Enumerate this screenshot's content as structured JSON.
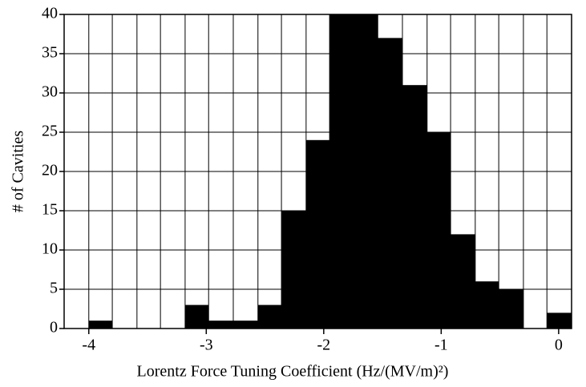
{
  "chart_data": {
    "type": "histogram",
    "xlabel": "Lorentz Force Tuning Coefficient   (Hz/(MV/m)²)",
    "ylabel": "# of Cavities",
    "bins": [
      -4.21,
      -4.0,
      -3.8,
      -3.59,
      -3.39,
      -3.18,
      -2.98,
      -2.77,
      -2.56,
      -2.36,
      -2.15,
      -1.95,
      -1.74,
      -1.54,
      -1.33,
      -1.12,
      -0.92,
      -0.71,
      -0.51,
      -0.3,
      -0.1,
      0.11
    ],
    "values": [
      0,
      1,
      0,
      0,
      0,
      3,
      1,
      1,
      3,
      15,
      24,
      40,
      40,
      37,
      31,
      25,
      12,
      6,
      5,
      0,
      2
    ],
    "color": "#000000",
    "xlim": [
      -4.21,
      0.11
    ],
    "xticks": [
      -4,
      -3,
      -2,
      -1,
      0
    ],
    "ylim": [
      0,
      40
    ],
    "yticks": [
      0,
      5,
      10,
      15,
      20,
      25,
      30,
      35,
      40
    ],
    "grid": true
  }
}
